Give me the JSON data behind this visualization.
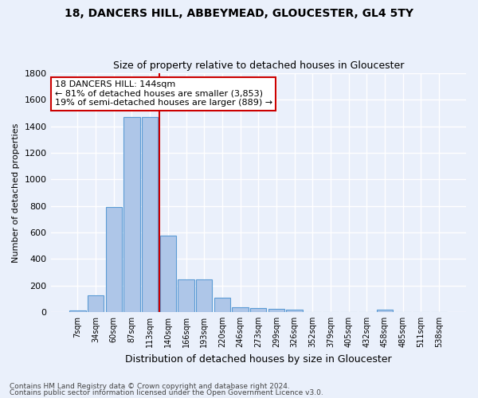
{
  "title1": "18, DANCERS HILL, ABBEYMEAD, GLOUCESTER, GL4 5TY",
  "title2": "Size of property relative to detached houses in Gloucester",
  "xlabel": "Distribution of detached houses by size in Gloucester",
  "ylabel": "Number of detached properties",
  "categories": [
    "7sqm",
    "34sqm",
    "60sqm",
    "87sqm",
    "113sqm",
    "140sqm",
    "166sqm",
    "193sqm",
    "220sqm",
    "246sqm",
    "273sqm",
    "299sqm",
    "326sqm",
    "352sqm",
    "379sqm",
    "405sqm",
    "432sqm",
    "458sqm",
    "485sqm",
    "511sqm",
    "538sqm"
  ],
  "values": [
    10,
    125,
    790,
    1470,
    1470,
    575,
    245,
    245,
    110,
    35,
    30,
    25,
    20,
    0,
    0,
    0,
    0,
    20,
    0,
    0,
    0
  ],
  "bar_color": "#aec6e8",
  "bar_edge_color": "#5b9bd5",
  "vline_x": 4.5,
  "annotation_text": "18 DANCERS HILL: 144sqm\n← 81% of detached houses are smaller (3,853)\n19% of semi-detached houses are larger (889) →",
  "annotation_box_color": "#ffffff",
  "annotation_box_edge": "#cc0000",
  "vline_color": "#cc0000",
  "ylim": [
    0,
    1800
  ],
  "yticks": [
    0,
    200,
    400,
    600,
    800,
    1000,
    1200,
    1400,
    1600,
    1800
  ],
  "footnote1": "Contains HM Land Registry data © Crown copyright and database right 2024.",
  "footnote2": "Contains public sector information licensed under the Open Government Licence v3.0.",
  "bg_color": "#eaf0fb",
  "grid_color": "#ffffff",
  "title1_fontsize": 10,
  "title2_fontsize": 9,
  "ylabel_fontsize": 8,
  "xlabel_fontsize": 9,
  "tick_fontsize": 7,
  "footnote_fontsize": 6.5
}
